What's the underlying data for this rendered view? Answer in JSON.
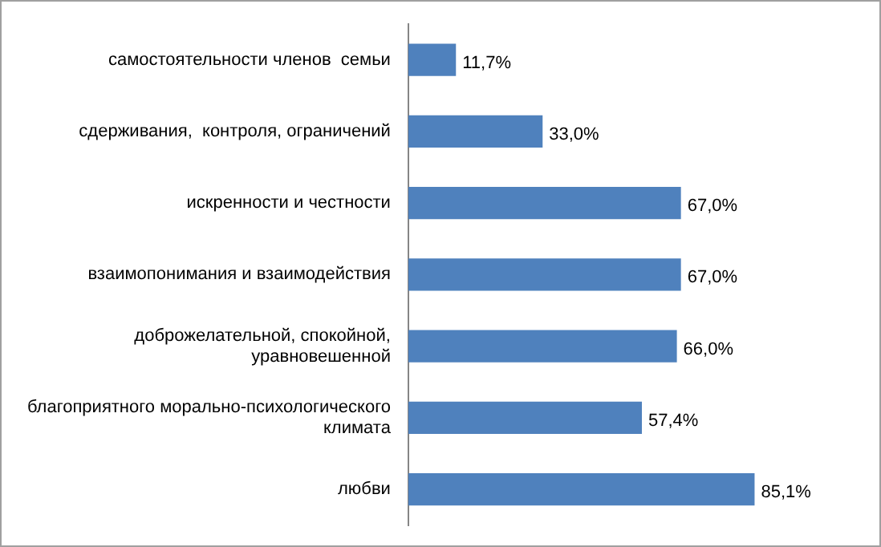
{
  "chart_data": {
    "type": "bar",
    "orientation": "horizontal",
    "categories": [
      "самостоятельности членов  семьи",
      "сдерживания,  контроля, ограничений",
      "искренности и честности",
      "взаимопонимания и взаимодействия",
      "доброжелательной, спокойной, уравновешенной",
      "благоприятного морально-психологического климата",
      "любви"
    ],
    "values": [
      11.7,
      33.0,
      67.0,
      67.0,
      66.0,
      57.4,
      85.1
    ],
    "value_labels": [
      "11,7%",
      "33,0%",
      "67,0%",
      "67,0%",
      "66,0%",
      "57,4%",
      "85,1%"
    ],
    "color": "#4f81bd",
    "grid": false,
    "tick_labels": "y"
  }
}
